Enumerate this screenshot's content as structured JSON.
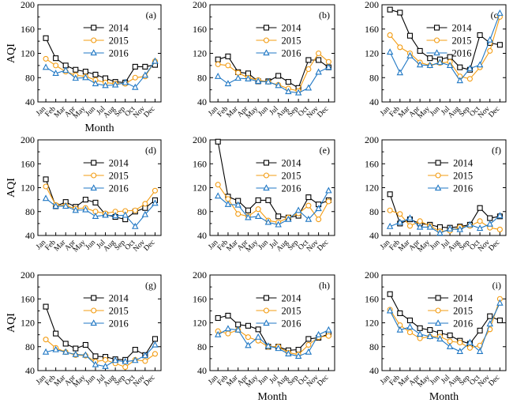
{
  "figure": {
    "series_colors": {
      "2014": "#000000",
      "2015": "#f39c12",
      "2016": "#1f77c4"
    },
    "series_markers": {
      "2014": "square",
      "2015": "circle",
      "2016": "triangle"
    }
  },
  "chart_data": [
    {
      "type": "line",
      "panel_label": "(a)",
      "xlabel": "Month",
      "ylabel": "AQI",
      "ylim": [
        40,
        200
      ],
      "yticks": [
        40,
        80,
        120,
        160,
        200
      ],
      "categories": [
        "Jan",
        "Feb",
        "Mar",
        "Apr",
        "May",
        "Jun",
        "Jul",
        "Aug",
        "Sep",
        "Oct",
        "Nov",
        "Dec"
      ],
      "legend_position": "top-center",
      "series": [
        {
          "name": "2014",
          "values": [
            145,
            112,
            100,
            93,
            90,
            85,
            79,
            73,
            72,
            98,
            98,
            101
          ]
        },
        {
          "name": "2015",
          "values": [
            111,
            100,
            90,
            84,
            82,
            76,
            72,
            70,
            70,
            80,
            82,
            107
          ]
        },
        {
          "name": "2016",
          "values": [
            97,
            87,
            92,
            79,
            80,
            70,
            67,
            68,
            72,
            64,
            84,
            107
          ]
        }
      ]
    },
    {
      "type": "line",
      "panel_label": "(b)",
      "xlabel": "",
      "ylabel": "",
      "ylim": [
        40,
        200
      ],
      "yticks": [
        40,
        80,
        120,
        160,
        200
      ],
      "categories": [
        "Jan",
        "Feb",
        "Mar",
        "Apr",
        "May",
        "Jun",
        "Jul",
        "Aug",
        "Sep",
        "Oct",
        "Nov",
        "Dec"
      ],
      "legend_position": "top-center",
      "series": [
        {
          "name": "2014",
          "values": [
            110,
            115,
            89,
            87,
            74,
            74,
            83,
            73,
            63,
            109,
            109,
            97
          ]
        },
        {
          "name": "2015",
          "values": [
            102,
            100,
            88,
            80,
            76,
            73,
            68,
            62,
            58,
            94,
            120,
            106
          ]
        },
        {
          "name": "2016",
          "values": [
            82,
            70,
            79,
            78,
            74,
            73,
            67,
            57,
            55,
            63,
            89,
            97
          ]
        }
      ]
    },
    {
      "type": "line",
      "panel_label": "(c)",
      "xlabel": "",
      "ylabel": "",
      "ylim": [
        40,
        200
      ],
      "yticks": [
        40,
        80,
        120,
        160,
        200
      ],
      "categories": [
        "Jan",
        "Feb",
        "Mar",
        "Apr",
        "May",
        "Jun",
        "Jul",
        "Aug",
        "Sep",
        "Oct",
        "Nov",
        "Dec"
      ],
      "legend_position": "top-right",
      "series": [
        {
          "name": "2014",
          "values": [
            192,
            187,
            149,
            124,
            112,
            110,
            114,
            97,
            93,
            150,
            137,
            134
          ]
        },
        {
          "name": "2015",
          "values": [
            150,
            130,
            120,
            105,
            100,
            104,
            106,
            82,
            78,
            97,
            124,
            180
          ]
        },
        {
          "name": "2016",
          "values": [
            122,
            88,
            116,
            101,
            100,
            105,
            100,
            75,
            95,
            101,
            142,
            186
          ]
        }
      ]
    },
    {
      "type": "line",
      "panel_label": "(d)",
      "xlabel": "",
      "ylabel": "AQI",
      "ylim": [
        40,
        200
      ],
      "yticks": [
        40,
        80,
        120,
        160,
        200
      ],
      "categories": [
        "Jan",
        "Feb",
        "Mar",
        "Apr",
        "May",
        "Jun",
        "Jul",
        "Aug",
        "Sep",
        "Oct",
        "Nov",
        "Dec"
      ],
      "legend_position": "top-center",
      "series": [
        {
          "name": "2014",
          "values": [
            134,
            89,
            96,
            88,
            100,
            95,
            75,
            71,
            67,
            80,
            86,
            99
          ]
        },
        {
          "name": "2015",
          "values": [
            122,
            91,
            90,
            85,
            86,
            80,
            77,
            80,
            81,
            82,
            93,
            115
          ]
        },
        {
          "name": "2016",
          "values": [
            102,
            89,
            89,
            82,
            83,
            72,
            74,
            73,
            74,
            55,
            75,
            94
          ]
        }
      ]
    },
    {
      "type": "line",
      "panel_label": "(e)",
      "xlabel": "",
      "ylabel": "",
      "ylim": [
        40,
        200
      ],
      "yticks": [
        40,
        80,
        120,
        160,
        200
      ],
      "categories": [
        "Jan",
        "Feb",
        "Mar",
        "Apr",
        "May",
        "Jun",
        "Jul",
        "Aug",
        "Sep",
        "Oct",
        "Nov",
        "Dec"
      ],
      "legend_position": "top-center",
      "series": [
        {
          "name": "2014",
          "values": [
            197,
            105,
            98,
            82,
            99,
            99,
            72,
            70,
            73,
            104,
            92,
            99
          ]
        },
        {
          "name": "2015",
          "values": [
            125,
            101,
            76,
            72,
            84,
            65,
            62,
            70,
            77,
            90,
            67,
            97
          ]
        },
        {
          "name": "2016",
          "values": [
            106,
            92,
            91,
            70,
            72,
            62,
            58,
            67,
            82,
            67,
            85,
            115
          ]
        }
      ]
    },
    {
      "type": "line",
      "panel_label": "(f)",
      "xlabel": "",
      "ylabel": "",
      "ylim": [
        40,
        200
      ],
      "yticks": [
        40,
        80,
        120,
        160,
        200
      ],
      "categories": [
        "Jan",
        "Feb",
        "Mar",
        "Apr",
        "May",
        "Jun",
        "Jul",
        "Aug",
        "Sep",
        "Oct",
        "Nov",
        "Dec"
      ],
      "legend_position": "top-center",
      "series": [
        {
          "name": "2014",
          "values": [
            109,
            60,
            67,
            60,
            58,
            54,
            53,
            55,
            58,
            86,
            69,
            72
          ]
        },
        {
          "name": "2015",
          "values": [
            82,
            76,
            56,
            64,
            56,
            47,
            48,
            54,
            56,
            64,
            53,
            50
          ]
        },
        {
          "name": "2016",
          "values": [
            55,
            62,
            69,
            54,
            54,
            44,
            51,
            50,
            58,
            52,
            59,
            73
          ]
        }
      ]
    },
    {
      "type": "line",
      "panel_label": "(g)",
      "xlabel": "",
      "ylabel": "AQI",
      "ylim": [
        40,
        200
      ],
      "yticks": [
        40,
        80,
        120,
        160,
        200
      ],
      "categories": [
        "Jan",
        "Feb",
        "Mar",
        "Apr",
        "May",
        "Jun",
        "Jul",
        "Aug",
        "Sep",
        "Oct",
        "Nov",
        "Dec"
      ],
      "legend_position": "top-center",
      "series": [
        {
          "name": "2014",
          "values": [
            147,
            102,
            85,
            77,
            83,
            64,
            63,
            59,
            58,
            75,
            66,
            93
          ]
        },
        {
          "name": "2015",
          "values": [
            92,
            78,
            71,
            66,
            65,
            55,
            58,
            52,
            46,
            58,
            56,
            68
          ]
        },
        {
          "name": "2016",
          "values": [
            71,
            75,
            71,
            67,
            66,
            50,
            47,
            57,
            55,
            57,
            65,
            83
          ]
        }
      ]
    },
    {
      "type": "line",
      "panel_label": "(h)",
      "xlabel": "Month",
      "ylabel": "",
      "ylim": [
        40,
        200
      ],
      "yticks": [
        40,
        80,
        120,
        160,
        200
      ],
      "categories": [
        "Jan",
        "Feb",
        "Mar",
        "Apr",
        "May",
        "Jun",
        "Jul",
        "Aug",
        "Sep",
        "Oct",
        "Nov",
        "Dec"
      ],
      "legend_position": "top-center",
      "series": [
        {
          "name": "2014",
          "values": [
            128,
            132,
            117,
            115,
            109,
            80,
            80,
            74,
            75,
            93,
            95,
            101
          ]
        },
        {
          "name": "2015",
          "values": [
            106,
            102,
            108,
            96,
            90,
            80,
            80,
            70,
            67,
            83,
            96,
            98
          ]
        },
        {
          "name": "2016",
          "values": [
            100,
            110,
            108,
            82,
            96,
            81,
            77,
            68,
            64,
            71,
            100,
            108
          ]
        }
      ]
    },
    {
      "type": "line",
      "panel_label": "(i)",
      "xlabel": "Month",
      "ylabel": "",
      "ylim": [
        40,
        200
      ],
      "yticks": [
        40,
        80,
        120,
        160,
        200
      ],
      "categories": [
        "Jan",
        "Feb",
        "Mar",
        "Apr",
        "May",
        "Jun",
        "Jul",
        "Aug",
        "Sep",
        "Oct",
        "Nov",
        "Dec"
      ],
      "legend_position": "top-center",
      "series": [
        {
          "name": "2014",
          "values": [
            168,
            136,
            124,
            111,
            108,
            103,
            99,
            90,
            85,
            107,
            131,
            124
          ]
        },
        {
          "name": "2015",
          "values": [
            142,
            116,
            104,
            94,
            97,
            97,
            89,
            87,
            78,
            82,
            109,
            160
          ]
        },
        {
          "name": "2016",
          "values": [
            140,
            108,
            113,
            101,
            97,
            93,
            80,
            72,
            87,
            72,
            118,
            153
          ]
        }
      ]
    }
  ]
}
